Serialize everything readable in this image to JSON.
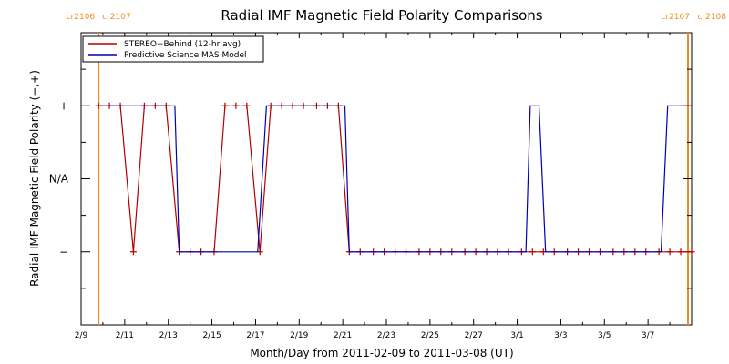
{
  "chart_data": {
    "type": "line",
    "title": "Radial IMF Magnetic Field Polarity Comparisons",
    "xlabel": "Month/Day from 2011-02-09 to 2011-03-08 (UT)",
    "ylabel": "Radial IMF Magnetic Field Polarity (−,+)",
    "x_unit": "days",
    "xlim": [
      0,
      28
    ],
    "ylim": [
      -2,
      2
    ],
    "x_ticks": [
      {
        "x": 0,
        "label": "2/9"
      },
      {
        "x": 2,
        "label": "2/11"
      },
      {
        "x": 4,
        "label": "2/13"
      },
      {
        "x": 6,
        "label": "2/15"
      },
      {
        "x": 8,
        "label": "2/17"
      },
      {
        "x": 10,
        "label": "2/19"
      },
      {
        "x": 12,
        "label": "2/21"
      },
      {
        "x": 14,
        "label": "2/23"
      },
      {
        "x": 16,
        "label": "2/25"
      },
      {
        "x": 18,
        "label": "2/27"
      },
      {
        "x": 20,
        "label": "3/1"
      },
      {
        "x": 22,
        "label": "3/3"
      },
      {
        "x": 24,
        "label": "3/5"
      },
      {
        "x": 26,
        "label": "3/7"
      }
    ],
    "y_ticks": [
      {
        "y": 1,
        "label": "+"
      },
      {
        "y": 0,
        "label": "N/A"
      },
      {
        "y": -1,
        "label": "−"
      }
    ],
    "grid": false,
    "legend_position": "top-left",
    "carrington_markers": [
      {
        "x": 0.8,
        "left_label": "cr2106",
        "right_label": "cr2107"
      },
      {
        "x": 28,
        "left_label": "cr2107",
        "right_label": "cr2108"
      }
    ],
    "series": [
      {
        "name": "STEREO−Behind (12-hr avg)",
        "color": "#b40000",
        "marker": "+",
        "points": [
          [
            0.8,
            1
          ],
          [
            1.3,
            1
          ],
          [
            1.8,
            1
          ],
          [
            2.4,
            -1
          ],
          [
            2.9,
            1
          ],
          [
            3.4,
            1
          ],
          [
            3.9,
            1
          ],
          [
            4.5,
            -1
          ],
          [
            5.0,
            -1
          ],
          [
            5.5,
            -1
          ],
          [
            6.1,
            -1
          ],
          [
            6.6,
            1
          ],
          [
            7.1,
            1
          ],
          [
            7.6,
            1
          ],
          [
            8.2,
            -1
          ],
          [
            8.7,
            1
          ],
          [
            9.2,
            1
          ],
          [
            9.7,
            1
          ],
          [
            10.2,
            1
          ],
          [
            10.8,
            1
          ],
          [
            11.3,
            1
          ],
          [
            11.8,
            1
          ],
          [
            12.3,
            -1
          ],
          [
            12.8,
            -1
          ],
          [
            13.4,
            -1
          ],
          [
            13.9,
            -1
          ],
          [
            14.4,
            -1
          ],
          [
            14.9,
            -1
          ],
          [
            15.5,
            -1
          ],
          [
            16.0,
            -1
          ],
          [
            16.5,
            -1
          ],
          [
            17.0,
            -1
          ],
          [
            17.6,
            -1
          ],
          [
            18.1,
            -1
          ],
          [
            18.6,
            -1
          ],
          [
            19.1,
            -1
          ],
          [
            19.6,
            -1
          ],
          [
            20.2,
            -1
          ],
          [
            20.7,
            -1
          ],
          [
            21.2,
            -1
          ],
          [
            21.7,
            -1
          ],
          [
            22.3,
            -1
          ],
          [
            22.8,
            -1
          ],
          [
            23.3,
            -1
          ],
          [
            23.8,
            -1
          ],
          [
            24.4,
            -1
          ],
          [
            24.9,
            -1
          ],
          [
            25.4,
            -1
          ],
          [
            25.9,
            -1
          ],
          [
            26.5,
            -1
          ],
          [
            27.0,
            -1
          ],
          [
            27.5,
            -1
          ],
          [
            28.0,
            -1
          ]
        ]
      },
      {
        "name": "Predictive Science MAS Model",
        "color": "#0000b4",
        "marker": "none",
        "points": [
          [
            0.8,
            1
          ],
          [
            4.3,
            1
          ],
          [
            4.5,
            -1
          ],
          [
            8.1,
            -1
          ],
          [
            8.5,
            1
          ],
          [
            12.1,
            1
          ],
          [
            12.3,
            -1
          ],
          [
            20.4,
            -1
          ],
          [
            20.6,
            1
          ],
          [
            21.0,
            1
          ],
          [
            21.3,
            -1
          ],
          [
            26.6,
            -1
          ],
          [
            26.9,
            1
          ],
          [
            28.0,
            1
          ]
        ]
      }
    ]
  }
}
